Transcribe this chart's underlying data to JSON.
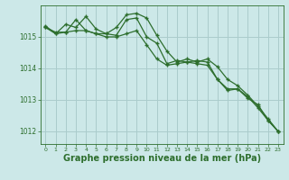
{
  "background_color": "#cce8e8",
  "grid_color": "#aacccc",
  "line_color": "#2d6e2d",
  "marker_color": "#2d6e2d",
  "xlabel": "Graphe pression niveau de la mer (hPa)",
  "xlabel_fontsize": 7,
  "tick_label_color": "#2d6e2d",
  "ylim": [
    1011.6,
    1016.0
  ],
  "xlim": [
    -0.5,
    23.5
  ],
  "yticks": [
    1012,
    1013,
    1014,
    1015
  ],
  "xticks": [
    0,
    1,
    2,
    3,
    4,
    5,
    6,
    7,
    8,
    9,
    10,
    11,
    12,
    13,
    14,
    15,
    16,
    17,
    18,
    19,
    20,
    21,
    22,
    23
  ],
  "series": [
    [
      1015.3,
      1015.15,
      1015.15,
      1015.55,
      1015.2,
      1015.1,
      1015.1,
      1015.05,
      1015.55,
      1015.6,
      1015.0,
      1014.8,
      1014.15,
      1014.25,
      1014.2,
      1014.25,
      1014.2,
      1013.65,
      1013.35,
      1013.35,
      1013.1,
      1012.75,
      1012.35,
      1012.0
    ],
    [
      1015.35,
      1015.1,
      1015.4,
      1015.3,
      1015.65,
      1015.25,
      1015.1,
      1015.3,
      1015.7,
      1015.75,
      1015.6,
      1015.05,
      1014.55,
      1014.2,
      1014.3,
      1014.2,
      1014.3,
      1014.05,
      1013.65,
      1013.45,
      1013.15,
      1012.8,
      1012.4,
      1012.0
    ],
    [
      1015.3,
      1015.1,
      1015.15,
      1015.2,
      1015.2,
      1015.1,
      1015.0,
      1015.0,
      1015.1,
      1015.2,
      1014.75,
      1014.3,
      1014.1,
      1014.15,
      1014.2,
      1014.15,
      1014.1,
      1013.65,
      1013.3,
      1013.35,
      1013.05,
      1012.85,
      1012.35,
      1012.0
    ]
  ]
}
